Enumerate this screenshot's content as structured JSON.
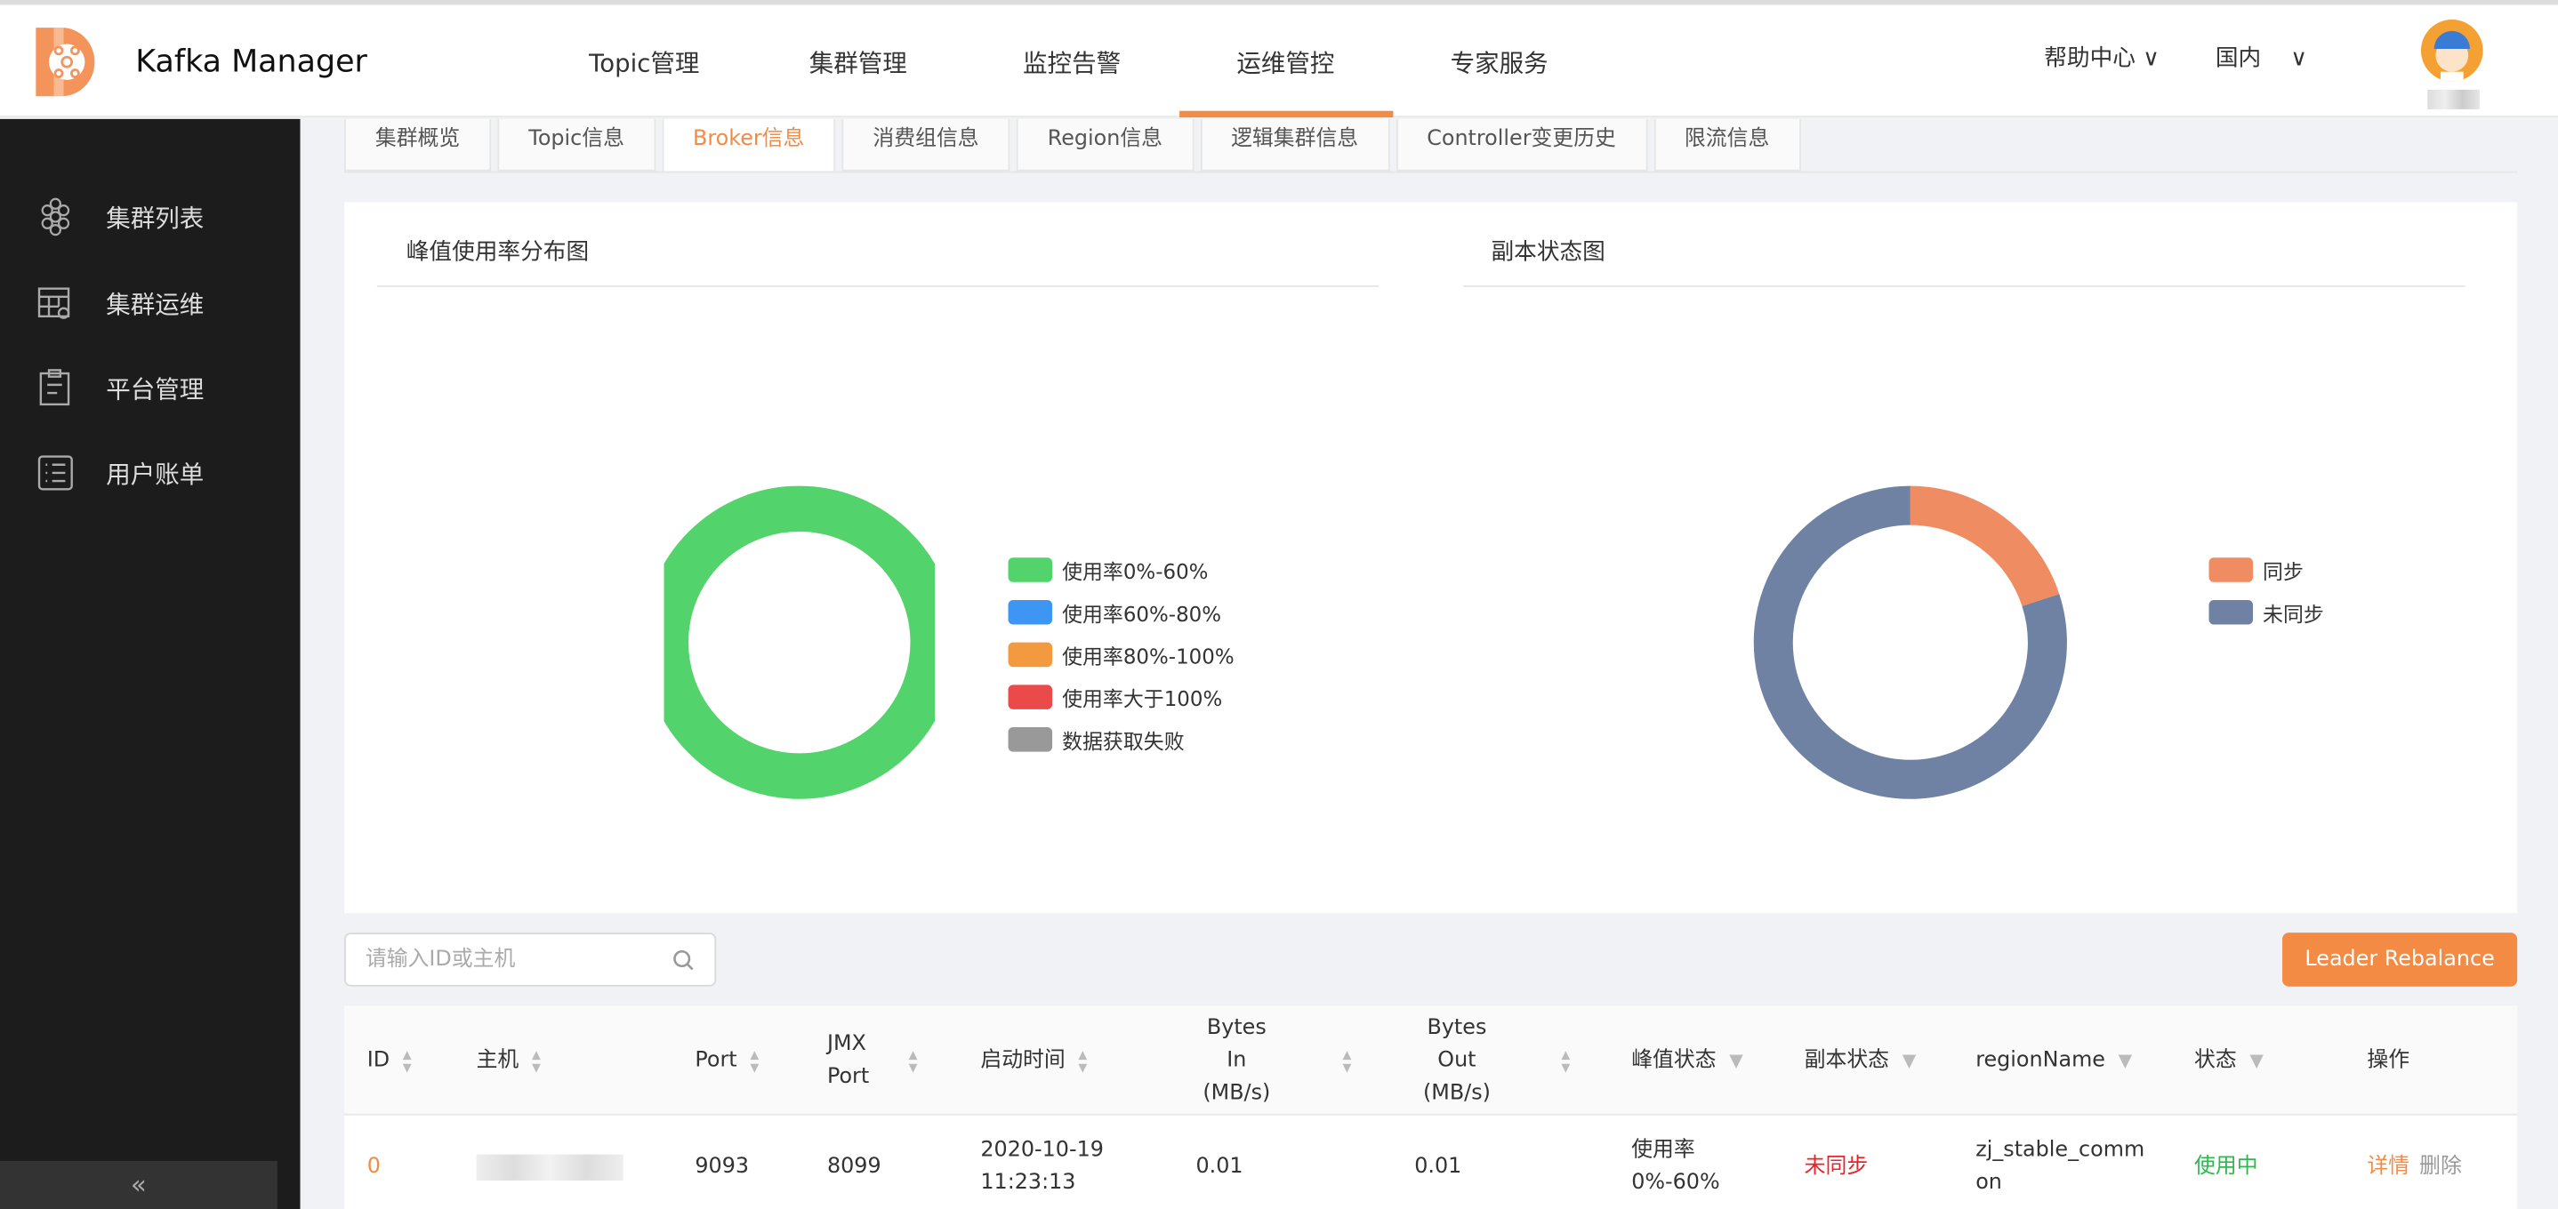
{
  "header": {
    "app_title": "Kafka Manager",
    "nav": [
      {
        "label": "Topic管理"
      },
      {
        "label": "集群管理"
      },
      {
        "label": "监控告警"
      },
      {
        "label": "运维管控",
        "active": true
      },
      {
        "label": "专家服务"
      }
    ],
    "help": "帮助中心",
    "region": "国内",
    "accent": "#f38b44"
  },
  "sidebar": {
    "items": [
      {
        "label": "集群列表",
        "icon": "hexagon-cluster-icon"
      },
      {
        "label": "集群运维",
        "icon": "table-gear-icon"
      },
      {
        "label": "平台管理",
        "icon": "clipboard-icon"
      },
      {
        "label": "用户账单",
        "icon": "list-icon"
      }
    ],
    "collapse": "«"
  },
  "tabs": [
    {
      "label": "集群概览"
    },
    {
      "label": "Topic信息"
    },
    {
      "label": "Broker信息",
      "active": true
    },
    {
      "label": "消费组信息"
    },
    {
      "label": "Region信息"
    },
    {
      "label": "逻辑集群信息"
    },
    {
      "label": "Controller变更历史"
    },
    {
      "label": "限流信息"
    }
  ],
  "chart_data": [
    {
      "type": "pie",
      "title": "峰值使用率分布图",
      "donut": true,
      "legend": "right",
      "categories": [
        "使用率0%-60%",
        "使用率60%-80%",
        "使用率80%-100%",
        "使用率大于100%",
        "数据获取失败"
      ],
      "values": [
        100,
        0,
        0,
        0,
        0
      ],
      "colors": [
        "#52d36b",
        "#3d96f4",
        "#f3993f",
        "#ea4a4a",
        "#999999"
      ]
    },
    {
      "type": "pie",
      "title": "副本状态图",
      "donut": true,
      "legend": "right",
      "categories": [
        "同步",
        "未同步"
      ],
      "values": [
        20,
        80
      ],
      "colors": [
        "#ef8c62",
        "#6f82a4"
      ]
    }
  ],
  "search": {
    "placeholder": "请输入ID或主机"
  },
  "rebalance_label": "Leader Rebalance",
  "table": {
    "columns": [
      "ID",
      "主机",
      "Port",
      "JMX Port",
      "启动时间",
      "Bytes In (MB/s)",
      "Bytes Out (MB/s)",
      "峰值状态",
      "副本状态",
      "regionName",
      "状态",
      "操作"
    ],
    "rows": [
      {
        "id": "0",
        "host": "",
        "port": "9093",
        "jmx_port": "8099",
        "start_time": "2020-10-19 11:23:13",
        "bytes_in": "0.01",
        "bytes_out": "0.01",
        "peak": "使用率0%-60%",
        "replica": "未同步",
        "region": "zj_stable_common",
        "status": "使用中",
        "actions": [
          "详情",
          "删除"
        ]
      }
    ]
  }
}
